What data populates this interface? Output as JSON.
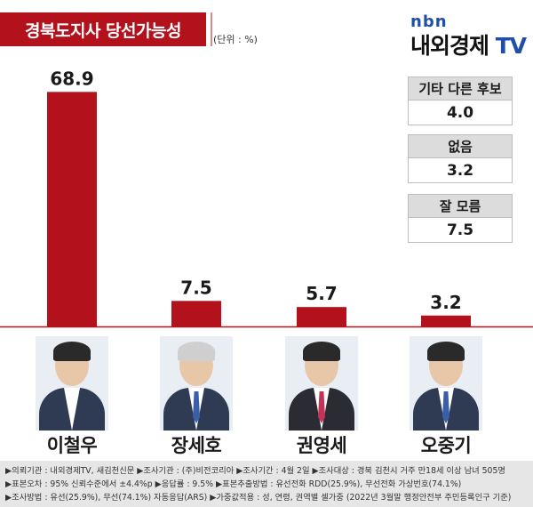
{
  "title": "경북도지사 당선가능성",
  "unit": "(단위 : %)",
  "logo": {
    "small": "nbn",
    "main": "내외경제",
    "tv": "TV"
  },
  "chart_data": {
    "type": "bar",
    "title": "경북도지사 당선가능성",
    "subtitle": "",
    "xlabel": "",
    "ylabel": "",
    "unit": "%",
    "categories": [
      "이철우",
      "장세호",
      "권영세",
      "오중기"
    ],
    "values": [
      68.9,
      7.5,
      5.7,
      3.2
    ],
    "data_labels": [
      "68.9",
      "7.5",
      "5.7",
      "3.2"
    ],
    "ylim": [
      0,
      75
    ],
    "grid": false,
    "legend": "none",
    "bar_color": "#b3121d"
  },
  "side_boxes": [
    {
      "label": "기타 다른 후보",
      "value": "4.0"
    },
    {
      "label": "없음",
      "value": "3.2"
    },
    {
      "label": "잘 모름",
      "value": "7.5"
    }
  ],
  "colors": {
    "accent": "#b3121d",
    "logo_blue": "#1f4fa8",
    "footer_bg": "#e6e6e6"
  },
  "footer": {
    "line1": "▶의뢰기관 : 내외경제TV, 새김천신문 ▶조사기관 : (주)비전코리아 ▶조사기간 : 4월 2일 ▶조사대상 : 경북 김천시 거주 만18세 이상 남녀 505명",
    "line2": "▶표본오차 : 95% 신뢰수준에서 ±4.4%p ▶응답률 : 9.5% ▶표본추출방법 : 유선전화 RDD(25.9%), 무선전화 가상번호(74.1%)",
    "line3": "▶조사방법 : 유선(25.9%), 무선(74.1%) 자동응답(ARS) ▶가중값적용 : 성, 연령, 권역별 셀가중 (2022년 3월말 행정안전부 주민등록인구 기준)"
  }
}
